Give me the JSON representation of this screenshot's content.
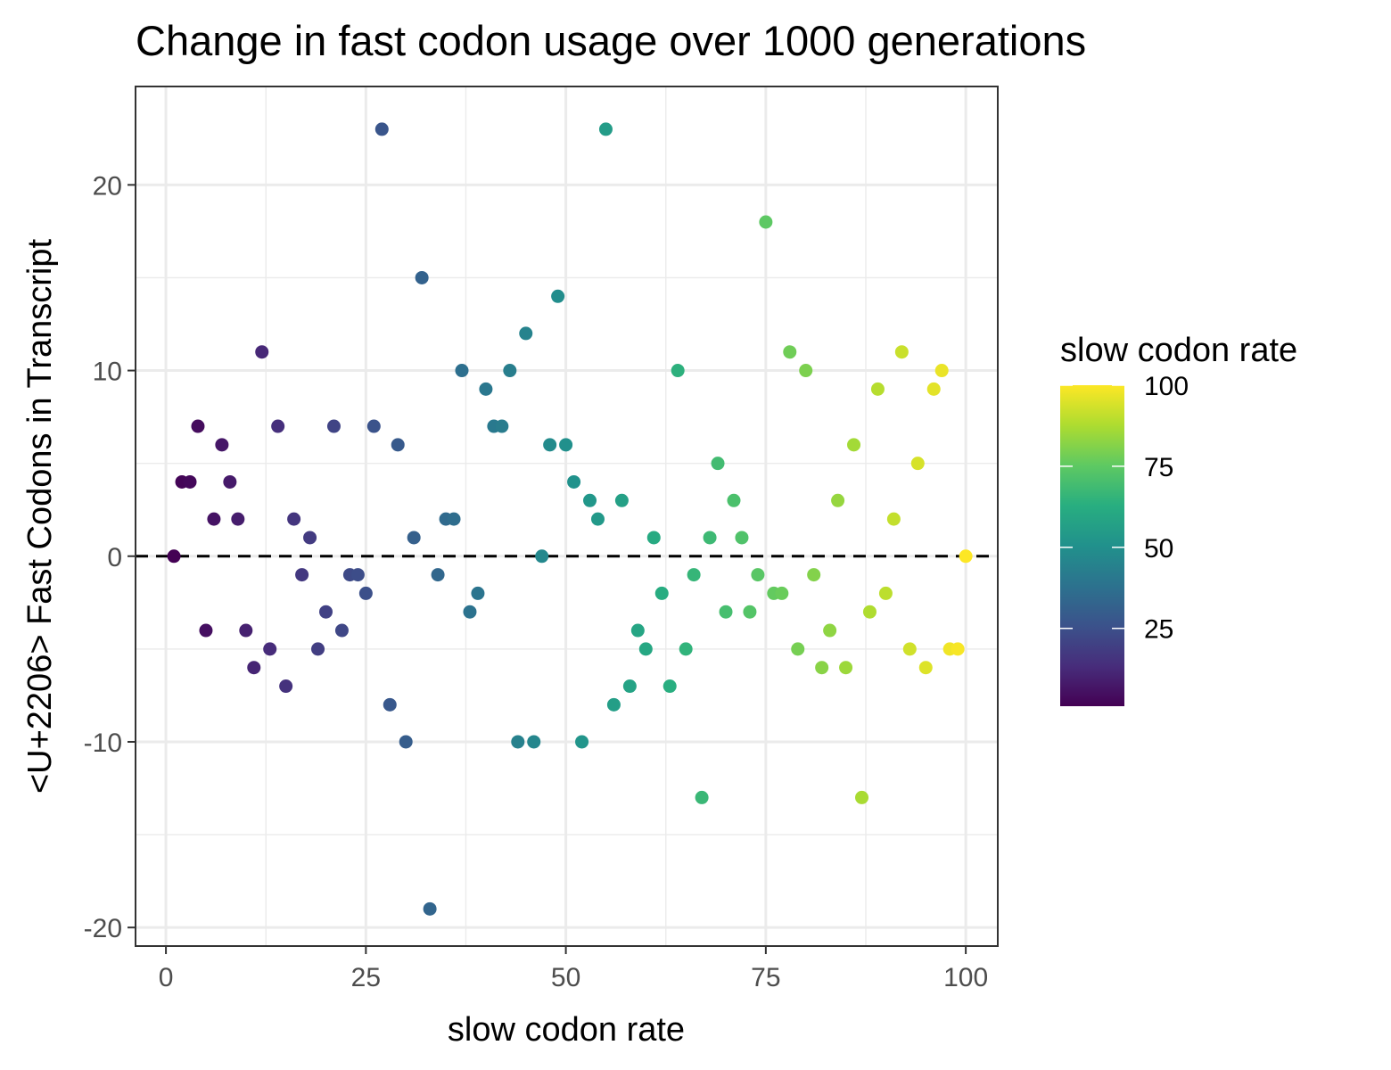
{
  "chart_data": {
    "type": "scatter",
    "title": "Change in fast codon usage over 1000 generations",
    "xlabel": "slow codon rate",
    "ylabel": "<U+2206> Fast Codons in Transcript",
    "xlim": [
      -3.8,
      104
    ],
    "ylim": [
      -21,
      25.3
    ],
    "x_ticks": [
      0,
      25,
      50,
      75,
      100
    ],
    "x_tick_labels": [
      "0",
      "25",
      "50",
      "75",
      "100"
    ],
    "y_ticks": [
      -20,
      -10,
      0,
      10,
      20
    ],
    "y_tick_labels": [
      "-20",
      "-10",
      "0",
      "10",
      "20"
    ],
    "grid": true,
    "reference_line": {
      "y": 0,
      "style": "dashed",
      "color": "#000000"
    },
    "color_scale": {
      "name": "slow codon rate",
      "palette": "viridis",
      "min": 1,
      "max": 100,
      "ticks": [
        25,
        50,
        75,
        100
      ],
      "tick_labels": [
        "25",
        "50",
        "75",
        "100"
      ],
      "legend_position": "right"
    },
    "points": [
      [
        1,
        0
      ],
      [
        2,
        4
      ],
      [
        3,
        4
      ],
      [
        4,
        7
      ],
      [
        5,
        -4
      ],
      [
        6,
        2
      ],
      [
        7,
        6
      ],
      [
        8,
        4
      ],
      [
        9,
        2
      ],
      [
        10,
        -4
      ],
      [
        11,
        -6
      ],
      [
        12,
        11
      ],
      [
        13,
        -5
      ],
      [
        14,
        7
      ],
      [
        15,
        -7
      ],
      [
        16,
        2
      ],
      [
        17,
        -1
      ],
      [
        18,
        1
      ],
      [
        19,
        -5
      ],
      [
        20,
        -3
      ],
      [
        21,
        7
      ],
      [
        22,
        -4
      ],
      [
        23,
        -1
      ],
      [
        24,
        -1
      ],
      [
        25,
        -2
      ],
      [
        26,
        7
      ],
      [
        27,
        23
      ],
      [
        28,
        -8
      ],
      [
        29,
        6
      ],
      [
        30,
        -10
      ],
      [
        31,
        1
      ],
      [
        32,
        15
      ],
      [
        33,
        -19
      ],
      [
        34,
        -1
      ],
      [
        35,
        2
      ],
      [
        36,
        2
      ],
      [
        37,
        10
      ],
      [
        38,
        -3
      ],
      [
        39,
        -2
      ],
      [
        40,
        9
      ],
      [
        41,
        7
      ],
      [
        42,
        7
      ],
      [
        43,
        10
      ],
      [
        44,
        -10
      ],
      [
        45,
        12
      ],
      [
        46,
        -10
      ],
      [
        47,
        0
      ],
      [
        48,
        6
      ],
      [
        49,
        14
      ],
      [
        50,
        6
      ],
      [
        51,
        4
      ],
      [
        52,
        -10
      ],
      [
        53,
        3
      ],
      [
        54,
        2
      ],
      [
        55,
        23
      ],
      [
        56,
        -8
      ],
      [
        57,
        3
      ],
      [
        58,
        -7
      ],
      [
        59,
        -4
      ],
      [
        60,
        -5
      ],
      [
        61,
        1
      ],
      [
        62,
        -2
      ],
      [
        63,
        -7
      ],
      [
        64,
        10
      ],
      [
        65,
        -5
      ],
      [
        66,
        -1
      ],
      [
        67,
        -13
      ],
      [
        68,
        1
      ],
      [
        69,
        5
      ],
      [
        70,
        -3
      ],
      [
        71,
        3
      ],
      [
        72,
        1
      ],
      [
        73,
        -3
      ],
      [
        74,
        -1
      ],
      [
        75,
        18
      ],
      [
        76,
        -2
      ],
      [
        77,
        -2
      ],
      [
        78,
        11
      ],
      [
        79,
        -5
      ],
      [
        80,
        10
      ],
      [
        81,
        -1
      ],
      [
        82,
        -6
      ],
      [
        83,
        -4
      ],
      [
        84,
        3
      ],
      [
        85,
        -6
      ],
      [
        86,
        6
      ],
      [
        87,
        -13
      ],
      [
        88,
        -3
      ],
      [
        89,
        9
      ],
      [
        90,
        -2
      ],
      [
        91,
        2
      ],
      [
        92,
        11
      ],
      [
        93,
        -5
      ],
      [
        94,
        5
      ],
      [
        95,
        -6
      ],
      [
        96,
        9
      ],
      [
        97,
        10
      ],
      [
        98,
        -5
      ],
      [
        99,
        -5
      ],
      [
        100,
        0
      ]
    ]
  }
}
